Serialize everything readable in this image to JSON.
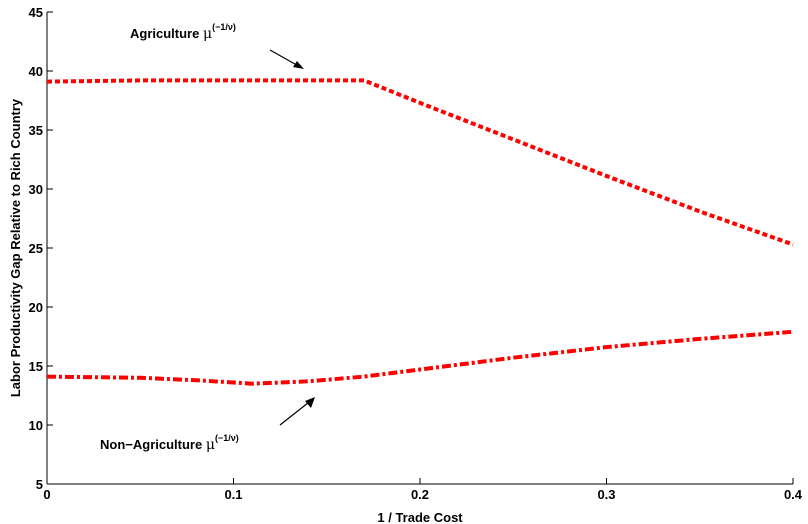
{
  "chart_data": {
    "type": "line",
    "title": "",
    "xlabel": "1 / Trade Cost",
    "ylabel": "Labor Productivity Gap Relative to Rich Country",
    "xlim": [
      0,
      0.4
    ],
    "ylim": [
      5,
      45
    ],
    "xticks": [
      "0",
      "0.1",
      "0.2",
      "0.3",
      "0.4"
    ],
    "yticks": [
      "5",
      "10",
      "15",
      "20",
      "25",
      "30",
      "35",
      "40",
      "45"
    ],
    "grid": false,
    "series": [
      {
        "key": "agriculture",
        "color": "#ff0000",
        "style": "dotted",
        "x": [
          0,
          0.05,
          0.1,
          0.15,
          0.17,
          0.2,
          0.25,
          0.3,
          0.35,
          0.4
        ],
        "y": [
          39.1,
          39.2,
          39.2,
          39.2,
          39.2,
          37.3,
          34.2,
          31.1,
          28.1,
          25.3
        ]
      },
      {
        "key": "non_agriculture",
        "color": "#ff0000",
        "style": "dashdot",
        "x": [
          0,
          0.05,
          0.08,
          0.11,
          0.14,
          0.17,
          0.2,
          0.25,
          0.3,
          0.35,
          0.4
        ],
        "y": [
          14.1,
          14.0,
          13.8,
          13.5,
          13.7,
          14.1,
          14.7,
          15.7,
          16.6,
          17.3,
          17.9
        ]
      }
    ],
    "annotations": [
      {
        "key": "agriculture",
        "label": "Agriculture ",
        "symbol": "μ",
        "exponent": "(−1/ν)"
      },
      {
        "key": "non_agriculture",
        "label": "Non−Agriculture ",
        "symbol": "μ",
        "exponent": "(−1/ν)"
      }
    ]
  }
}
